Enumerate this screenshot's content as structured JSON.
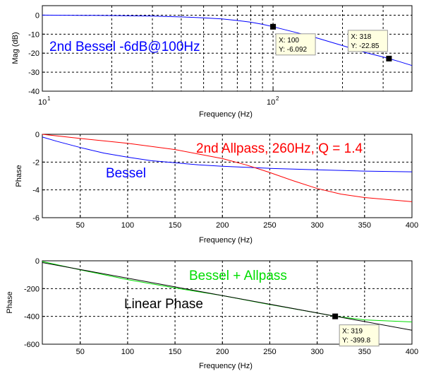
{
  "chart_data": [
    {
      "type": "line",
      "xscale": "log",
      "xlim": [
        10,
        400
      ],
      "ylim": [
        -40,
        5
      ],
      "xlabel": "Frequency (Hz)",
      "ylabel": "Mag (dB)",
      "xticks": [
        "10",
        "10",
        "2"
      ],
      "xtick_note": "tick labels are 10^1 and 10^2",
      "yticks": [
        "0",
        "-10",
        "-20",
        "-30",
        "-40"
      ],
      "grid": true,
      "annotation": {
        "text": "2nd Bessel -6dB@100Hz",
        "color": "#0000ff"
      },
      "series": [
        {
          "color": "#0000ff",
          "x": [
            10,
            20,
            30,
            40,
            50,
            60,
            70,
            80,
            90,
            100,
            120,
            150,
            200,
            250,
            300,
            318,
            350,
            400
          ],
          "y": [
            0,
            -0.2,
            -0.5,
            -0.9,
            -1.4,
            -2.0,
            -2.8,
            -3.7,
            -4.8,
            -6.092,
            -8.5,
            -11.5,
            -16.0,
            -19.6,
            -22.0,
            -22.85,
            -24.3,
            -26.5
          ]
        }
      ],
      "datatips": [
        {
          "x": 100,
          "y": -6.092,
          "label_x": "X: 100",
          "label_y": "Y: -6.092"
        },
        {
          "x": 318,
          "y": -22.85,
          "label_x": "X: 318",
          "label_y": "Y: -22.85"
        }
      ]
    },
    {
      "type": "line",
      "xlim": [
        10,
        400
      ],
      "ylim": [
        -6,
        0
      ],
      "xlabel": "Frequency (Hz)",
      "ylabel": "Phase",
      "xticks": [
        "50",
        "100",
        "150",
        "200",
        "250",
        "300",
        "350",
        "400"
      ],
      "yticks": [
        "0",
        "-2",
        "-4",
        "-6"
      ],
      "grid": true,
      "annotations": [
        {
          "text": "2nd Allpass, 260Hz, Q = 1.4",
          "color": "#ff0000"
        },
        {
          "text": "Bessel",
          "color": "#0000ff"
        }
      ],
      "series": [
        {
          "color": "#0000ff",
          "x": [
            10,
            25,
            50,
            75,
            100,
            125,
            150,
            175,
            200,
            250,
            300,
            350,
            400
          ],
          "y": [
            -0.2,
            -0.5,
            -0.95,
            -1.35,
            -1.65,
            -1.9,
            -2.05,
            -2.2,
            -2.3,
            -2.45,
            -2.55,
            -2.65,
            -2.7
          ]
        },
        {
          "color": "#ff0000",
          "x": [
            10,
            50,
            100,
            150,
            200,
            225,
            250,
            275,
            300,
            325,
            350,
            400
          ],
          "y": [
            0,
            -0.3,
            -0.65,
            -1.1,
            -1.75,
            -2.2,
            -2.75,
            -3.35,
            -3.9,
            -4.3,
            -4.55,
            -4.85
          ]
        }
      ]
    },
    {
      "type": "line",
      "xlim": [
        10,
        400
      ],
      "ylim": [
        -600,
        0
      ],
      "xlabel": "Frequency (Hz)",
      "ylabel": "Phase",
      "xticks": [
        "50",
        "100",
        "150",
        "200",
        "250",
        "300",
        "350",
        "400"
      ],
      "yticks": [
        "0",
        "-200",
        "-400",
        "-600"
      ],
      "grid": true,
      "annotations": [
        {
          "text": "Bessel + Allpass",
          "color": "#00dd00"
        },
        {
          "text": "Linear Phase",
          "color": "#000000"
        }
      ],
      "series": [
        {
          "color": "#00dd00",
          "x": [
            10,
            50,
            100,
            150,
            200,
            250,
            300,
            319,
            350,
            400
          ],
          "y": [
            -5,
            -65,
            -135,
            -195,
            -250,
            -315,
            -375,
            -399.8,
            -425,
            -440
          ]
        },
        {
          "color": "#000000",
          "x": [
            10,
            400
          ],
          "y": [
            -12.5,
            -500
          ]
        }
      ],
      "datatips": [
        {
          "x": 319,
          "y": -399.8,
          "label_x": "X: 319",
          "label_y": "Y: -399.8"
        }
      ]
    }
  ]
}
